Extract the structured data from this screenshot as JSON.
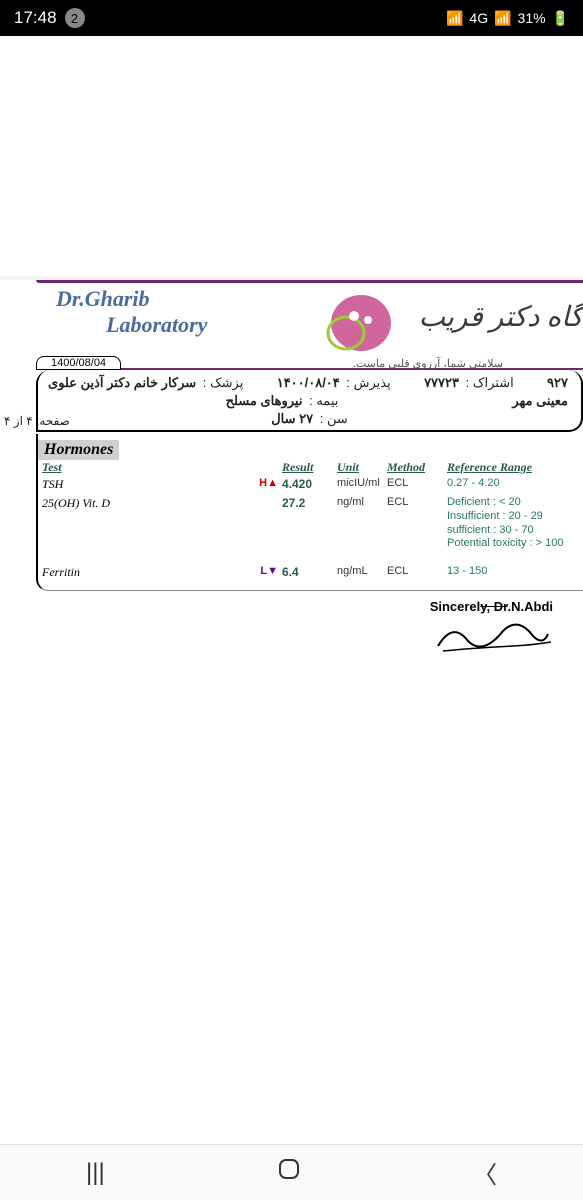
{
  "status": {
    "time": "17:48",
    "notif_count": "2",
    "network": "4G",
    "battery": "31%"
  },
  "lab": {
    "name_line1": "Dr.Gharib",
    "name_line2": "Laboratory",
    "persian_name": "گاه دکتر قریب",
    "slogan": "سلامتی شما، آرزوی قلبی ماست.",
    "date_tab": "1400/08/04"
  },
  "patient": {
    "sub_label": "اشتراک :",
    "sub_value": "۷۷۷۲۳",
    "id_prefix": "۹۲۷",
    "adm_label": "پذیرش :",
    "adm_value": "۱۴۰۰/۰۸/۰۴",
    "doctor_label": "پزشک :",
    "doctor_value": "سرکار خانم دکتر آذین علوی",
    "name_value": "معینی مهر",
    "ins_label": "بیمه :",
    "ins_value": "نیروهای مسلح",
    "age_label": "سن :",
    "age_value": "۲۷ سال",
    "page_label": "صفحه:",
    "page_of": "از",
    "page_cur": "۴",
    "page_tot": "۴"
  },
  "section_title": "Hormones",
  "headers": {
    "test": "Test",
    "result": "Result",
    "unit": "Unit",
    "method": "Method",
    "range": "Reference Range"
  },
  "rows": [
    {
      "test": "TSH",
      "flag": "H▲",
      "flag_class": "high",
      "result": "4.420",
      "unit": "micIU/ml",
      "method": "ECL",
      "range": "0.27 - 4.20"
    },
    {
      "test": "25(OH) Vit. D",
      "flag": "",
      "flag_class": "",
      "result": "27.2",
      "unit": "ng/ml",
      "method": "ECL",
      "range": "Deficient : < 20\nInsufficient : 20 - 29\nsufficient : 30 - 70\nPotential toxicity : > 100"
    },
    {
      "test": "Ferritin",
      "flag": "L▼",
      "flag_class": "low",
      "result": "6.4",
      "unit": "ng/mL",
      "method": "ECL",
      "range": "13 - 150"
    }
  ],
  "signature": {
    "line": "Sincerely, Dr. N.Abdi",
    "prefix": "Sincerel",
    "crossed": "y, Dr",
    "suffix": ".N.Abdi"
  },
  "colors": {
    "rule": "#6b2a6b",
    "lab_name": "#4a6ba0",
    "header_green": "#2a5a4a",
    "ref_green": "#2a7a5a"
  }
}
